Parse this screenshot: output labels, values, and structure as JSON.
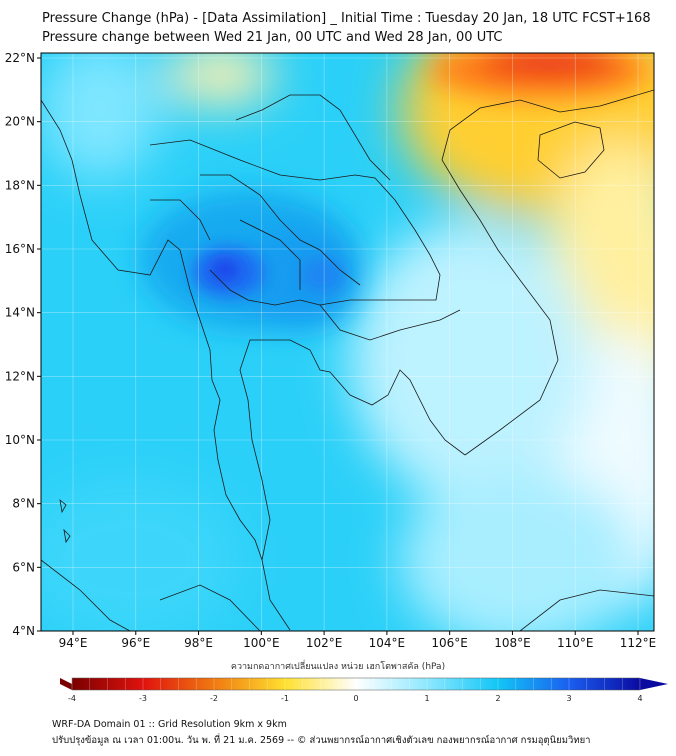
{
  "header": {
    "title_line1": "Pressure Change (hPa) - [Data Assimilation] _ Initial Time : Tuesday 20 Jan, 18 UTC FCST+168",
    "title_line2": "Pressure change between Wed 21 Jan, 00 UTC and Wed 28 Jan, 00 UTC"
  },
  "map": {
    "region": "Thailand and Indochina",
    "lat_ticks": [
      "4°N",
      "6°N",
      "8°N",
      "10°N",
      "12°N",
      "14°N",
      "16°N",
      "18°N",
      "20°N",
      "22°N"
    ],
    "lon_ticks": [
      "94°E",
      "96°E",
      "98°E",
      "100°E",
      "102°E",
      "104°E",
      "106°E",
      "108°E",
      "110°E",
      "112°E"
    ]
  },
  "colorbar": {
    "label": "ความกดอากาศเปลี่ยนแปลง หน่วย เฮกโตพาสคัล (hPa)",
    "ticks": [
      "-4",
      "-3",
      "-2",
      "-1",
      "0",
      "1",
      "2",
      "3",
      "4"
    ],
    "min": -4,
    "max": 4,
    "colors": {
      "neg_4": "#7a0000",
      "neg_3": "#e0120e",
      "neg_2": "#f07a10",
      "neg_1": "#ffe030",
      "zero": "#ffffff",
      "pos_1": "#8ee8ff",
      "pos_2": "#12c6f6",
      "pos_3": "#1a5ff0",
      "pos_4": "#0a0aa0"
    }
  },
  "footer": {
    "line1": "WRF-DA Domain 01 :: Grid Resolution 9km x 9km",
    "line2": "ปรับปรุงข้อมูล ณ เวลา 01:00น. วัน พ. ที่ 21 ม.ค. 2569 -- © ส่วนพยากรณ์อากาศเชิงตัวเลข กองพยากรณ์อากาศ กรมอุตุนิยมวิทยา"
  }
}
